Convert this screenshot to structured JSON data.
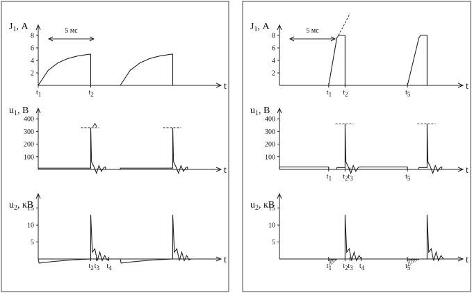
{
  "chart_data": [
    {
      "type": "line",
      "panel": "left",
      "duration_note": "5 мс",
      "subplots": [
        {
          "ylabel_main": "J",
          "ylabel_sub": "1",
          "ylabel_unit": ", А",
          "xlabel": "t",
          "ylim": [
            0,
            9
          ],
          "yticks": [
            2,
            4,
            6,
            8
          ],
          "xlim": [
            0,
            10
          ],
          "x_events": [
            {
              "main": "t",
              "sub": "1",
              "x": 0
            },
            {
              "main": "t",
              "sub": "2",
              "x": 3.2
            }
          ],
          "series": [
            {
              "x": [
                0,
                0.6,
                1.2,
                1.8,
                2.4,
                3.0,
                3.2,
                3.2,
                5.0,
                5.6,
                6.2,
                6.8,
                7.4,
                8.0,
                8.2,
                8.2
              ],
              "y": [
                0,
                2.4,
                3.6,
                4.3,
                4.7,
                4.95,
                5.0,
                0,
                0,
                2.4,
                3.6,
                4.3,
                4.7,
                4.95,
                5.0,
                0
              ]
            }
          ]
        },
        {
          "ylabel_main": "u",
          "ylabel_sub": "1",
          "ylabel_unit": ", В",
          "xlabel": "t",
          "ylim": [
            0,
            450
          ],
          "yticks": [
            100,
            200,
            300,
            400
          ],
          "xlim": [
            0,
            10
          ],
          "peak_marker": 330,
          "x_events": [],
          "series": [
            {
              "x": [
                0,
                3.2,
                3.2,
                3.25,
                3.4,
                3.55,
                3.7,
                3.85,
                4.0,
                4.1,
                4.1,
                5.0,
                5.0,
                8.2,
                8.2,
                8.25,
                8.4,
                8.55,
                8.7,
                8.85,
                9.0,
                9.1,
                9.1,
                10
              ],
              "y": [
                10,
                10,
                330,
                60,
                20,
                -30,
                30,
                -15,
                15,
                20,
                0,
                0,
                10,
                10,
                330,
                60,
                20,
                -30,
                30,
                -15,
                15,
                20,
                0,
                0
              ]
            }
          ]
        },
        {
          "ylabel_main": "u",
          "ylabel_sub": "2",
          "ylabel_unit": ", кВ",
          "xlabel": "t",
          "ylim": [
            -2,
            18
          ],
          "yticks": [
            5,
            10,
            15
          ],
          "xlim": [
            0,
            10
          ],
          "x_events": [
            {
              "main": "t",
              "sub": "2",
              "x": 3.2
            },
            {
              "main": "t",
              "sub": "3",
              "x": 3.55
            },
            {
              "main": "t",
              "sub": "4",
              "x": 4.3
            }
          ],
          "series": [
            {
              "x": [
                0,
                0.05,
                1.0,
                2.0,
                3.2,
                3.2,
                3.3,
                3.45,
                3.6,
                3.75,
                3.9,
                4.05,
                4.2,
                4.3,
                5.0,
                5.05,
                6.0,
                7.0,
                8.2,
                8.2,
                8.3,
                8.45,
                8.6,
                8.75,
                8.9,
                9.05,
                9.2,
                9.3,
                10
              ],
              "y": [
                0,
                -1.2,
                -0.7,
                -0.3,
                0,
                13,
                2,
                3,
                -0.5,
                2,
                -0.5,
                1,
                -0.3,
                0,
                0,
                -1.2,
                -0.7,
                -0.3,
                0,
                13,
                2,
                3,
                -0.5,
                2,
                -0.5,
                1,
                -0.3,
                0,
                0
              ]
            }
          ]
        }
      ]
    },
    {
      "type": "line",
      "panel": "right",
      "duration_note": "5 мс",
      "subplots": [
        {
          "ylabel_main": "J",
          "ylabel_sub": "1",
          "ylabel_unit": ", А",
          "xlabel": "t",
          "ylim": [
            0,
            9
          ],
          "yticks": [
            2,
            4,
            6,
            8
          ],
          "xlim": [
            0,
            10
          ],
          "x_events": [
            {
              "main": "t",
              "sub": "1",
              "x": 3.0
            },
            {
              "main": "t",
              "sub": "2",
              "x": 4.0
            },
            {
              "main": "t",
              "sub": "5",
              "x": 7.8
            }
          ],
          "series": [
            {
              "x": [
                0,
                3.0,
                3.5,
                3.6,
                4.0,
                4.0,
                7.8,
                8.5,
                8.6,
                9.0,
                9.0,
                10
              ],
              "y": [
                0,
                0,
                7.6,
                8.0,
                8.0,
                0,
                0,
                7.6,
                8.0,
                8.0,
                0,
                0
              ]
            }
          ]
        },
        {
          "ylabel_main": "u",
          "ylabel_sub": "1",
          "ylabel_unit": ", В",
          "xlabel": "t",
          "ylim": [
            0,
            450
          ],
          "yticks": [
            100,
            200,
            300,
            400
          ],
          "xlim": [
            0,
            10
          ],
          "peak_marker": 360,
          "x_events": [
            {
              "main": "t",
              "sub": "1",
              "x": 3.0
            },
            {
              "main": "t",
              "sub": "2",
              "x": 4.0
            },
            {
              "main": "t",
              "sub": "3",
              "x": 4.3
            },
            {
              "main": "t",
              "sub": "5",
              "x": 7.8
            }
          ],
          "series": [
            {
              "x": [
                0,
                0,
                3.0,
                3.0,
                3.5,
                3.5,
                4.0,
                4.0,
                4.05,
                4.2,
                4.35,
                4.5,
                4.65,
                4.8,
                4.9,
                4.9,
                7.8,
                7.8,
                8.5,
                8.5,
                9.0,
                9.0,
                9.05,
                9.2,
                9.35,
                9.5,
                9.65,
                9.8,
                9.9,
                9.9,
                10
              ],
              "y": [
                0,
                20,
                20,
                0,
                0,
                15,
                15,
                360,
                60,
                20,
                -30,
                30,
                -15,
                15,
                20,
                20,
                20,
                0,
                0,
                15,
                15,
                360,
                60,
                20,
                -30,
                30,
                -15,
                15,
                20,
                0,
                0
              ]
            }
          ]
        },
        {
          "ylabel_main": "u",
          "ylabel_sub": "2",
          "ylabel_unit": ", кВ",
          "xlabel": "t",
          "ylim": [
            -2,
            18
          ],
          "yticks": [
            5,
            10,
            15
          ],
          "xlim": [
            0,
            10
          ],
          "x_events": [
            {
              "main": "t",
              "sub": "1",
              "x": 3.0
            },
            {
              "main": "t",
              "sub": "2",
              "x": 4.0
            },
            {
              "main": "t",
              "sub": "3",
              "x": 4.3
            },
            {
              "main": "t",
              "sub": "4",
              "x": 5.0
            },
            {
              "main": "t",
              "sub": "5",
              "x": 7.8
            }
          ],
          "series": [
            {
              "x": [
                0,
                3.0,
                3.0,
                3.5,
                3.5,
                4.0,
                4.0,
                4.1,
                4.25,
                4.4,
                4.55,
                4.7,
                4.85,
                5.0,
                7.8,
                7.8,
                8.5,
                8.5,
                9.0,
                9.0,
                9.1,
                9.25,
                9.4,
                9.55,
                9.7,
                9.85,
                10
              ],
              "y": [
                0,
                0,
                -0.3,
                -0.1,
                0,
                0,
                13,
                2,
                3,
                -0.5,
                2,
                -0.5,
                1,
                0,
                0,
                -0.3,
                -0.1,
                0,
                0,
                13,
                2,
                3,
                -0.5,
                2,
                -0.5,
                1,
                0
              ]
            }
          ]
        }
      ]
    }
  ]
}
